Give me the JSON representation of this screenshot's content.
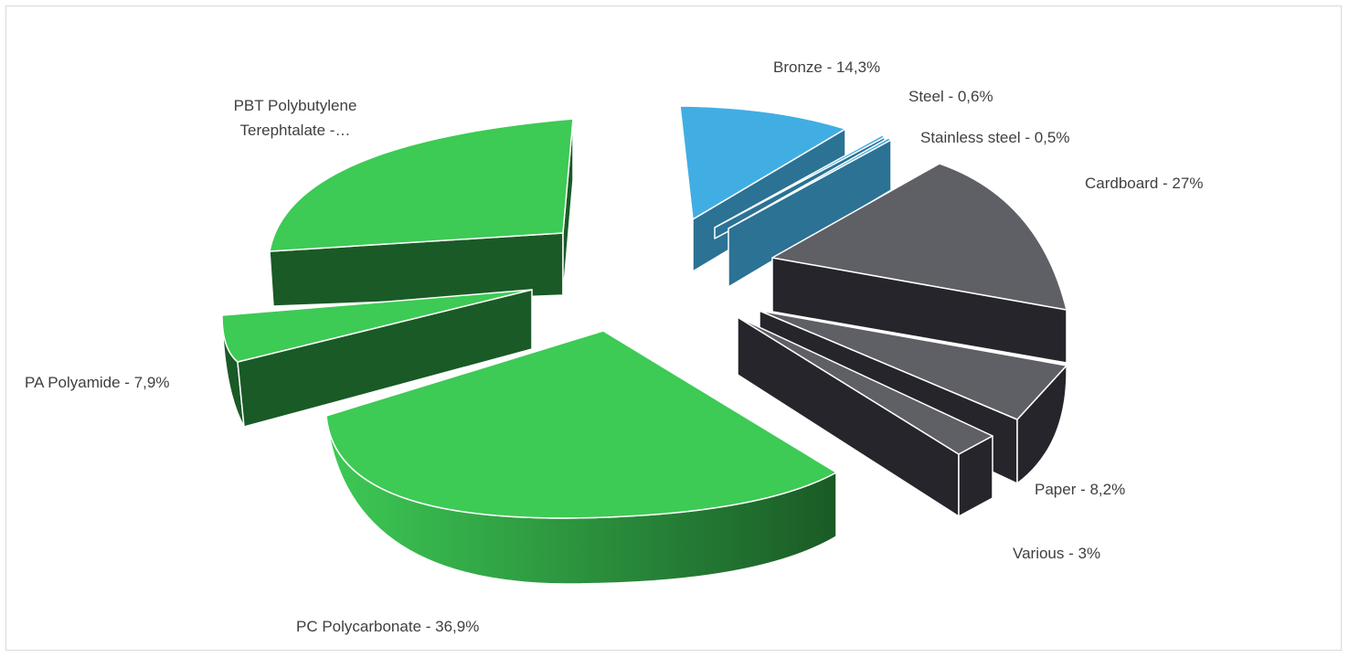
{
  "chart_data": {
    "type": "pie",
    "style": "3d-exploded",
    "legend": "none",
    "slices": [
      {
        "name": "Bronze",
        "value": 14.3,
        "label": "Bronze - 14,3%",
        "color": "#41aee3",
        "group": "metal"
      },
      {
        "name": "Steel",
        "value": 0.6,
        "label": "Steel - 0,6%",
        "color": "#41aee3",
        "group": "metal"
      },
      {
        "name": "Stainless steel",
        "value": 0.5,
        "label": "Stainless steel - 0,5%",
        "color": "#41aee3",
        "group": "metal"
      },
      {
        "name": "Cardboard",
        "value": 27,
        "label": "Cardboard - 27%",
        "color": "#5f6066",
        "group": "paper"
      },
      {
        "name": "Paper",
        "value": 8.2,
        "label": "Paper - 8,2%",
        "color": "#5f6066",
        "group": "paper"
      },
      {
        "name": "Various",
        "value": 3,
        "label": "Various - 3%",
        "color": "#5f6066",
        "group": "paper"
      },
      {
        "name": "PC Polycarbonate",
        "value": 36.9,
        "label": "PC Polycarbonate - 36,9%",
        "color": "#3dca55",
        "group": "plastic"
      },
      {
        "name": "PA Polyamide",
        "value": 7.9,
        "label": "PA Polyamide - 7,9%",
        "color": "#3dca55",
        "group": "plastic"
      },
      {
        "name": "PBT Polybutylene Terephtalate",
        "value": null,
        "label": "PBT Polybutylene\nTerephtalate -…",
        "color": "#3dca55",
        "group": "plastic"
      }
    ],
    "side_colors": {
      "metal": "#2b7294",
      "paper": "#25252b",
      "plastic": "#1a5a26"
    }
  }
}
